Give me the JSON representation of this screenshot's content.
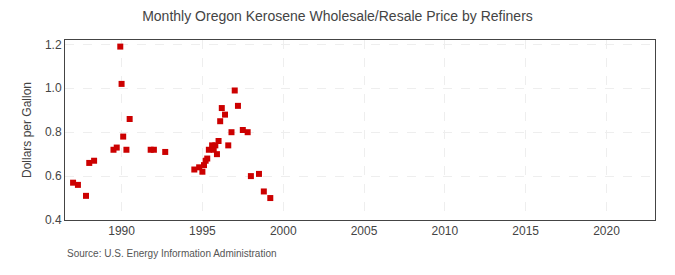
{
  "chart_data": {
    "type": "scatter",
    "title": "Monthly Oregon Kerosene Wholesale/Resale Price by Refiners",
    "ylabel": "Dollars per Gallon",
    "annotations": [
      "Source: U.S. Energy Information Administration"
    ],
    "x": [
      1987.0,
      1987.3,
      1987.8,
      1988.0,
      1988.3,
      1989.5,
      1989.7,
      1989.92,
      1990.0,
      1990.1,
      1990.3,
      1990.5,
      1991.8,
      1992.0,
      1992.7,
      1994.5,
      1994.8,
      1995.0,
      1995.1,
      1995.2,
      1995.3,
      1995.4,
      1995.6,
      1995.7,
      1995.8,
      1995.9,
      1996.0,
      1996.1,
      1996.2,
      1996.4,
      1996.6,
      1996.8,
      1997.0,
      1997.2,
      1997.5,
      1997.8,
      1998.0,
      1998.5,
      1998.8,
      1999.2
    ],
    "values": [
      0.57,
      0.56,
      0.51,
      0.66,
      0.67,
      0.72,
      0.73,
      1.19,
      1.02,
      0.78,
      0.72,
      0.86,
      0.72,
      0.72,
      0.71,
      0.63,
      0.64,
      0.62,
      0.65,
      0.67,
      0.68,
      0.72,
      0.74,
      0.72,
      0.74,
      0.7,
      0.76,
      0.85,
      0.91,
      0.88,
      0.74,
      0.8,
      0.99,
      0.92,
      0.81,
      0.8,
      0.6,
      0.61,
      0.53,
      0.5
    ],
    "color": "#cc0000",
    "marker": "square",
    "xlim": [
      1986.5,
      2023
    ],
    "ylim": [
      0.4,
      1.22
    ],
    "xticks": [
      1990,
      1995,
      2000,
      2005,
      2010,
      2015,
      2020
    ],
    "yticks": [
      0.4,
      0.6,
      0.8,
      {
        "value": 1.0,
        "label": "1.0"
      },
      1.2
    ],
    "grid": true
  }
}
